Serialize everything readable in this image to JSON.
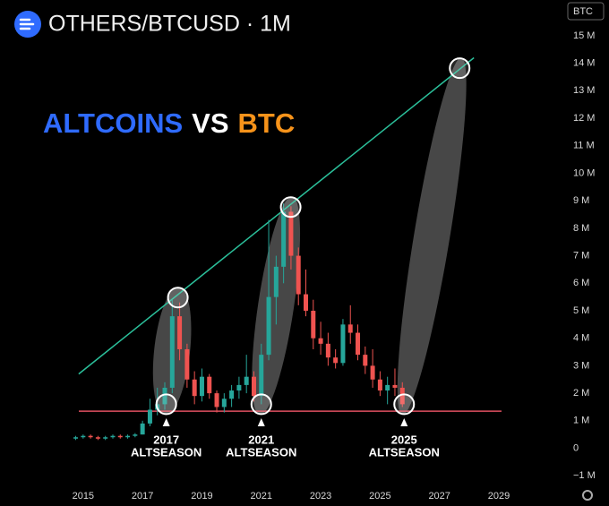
{
  "chart_data": {
    "type": "candlestick",
    "title": "OTHERS/BTCUSD · 1M",
    "headline": [
      "ALTCOINS",
      "VS",
      "BTC"
    ],
    "headline_colors": [
      "#2f6bff",
      "#ffffff",
      "#f7931a"
    ],
    "currency": "BTC",
    "up_color": "#26a69a",
    "down_color": "#ef5350",
    "x": [
      2014.75,
      2015.0,
      2015.25,
      2015.5,
      2015.75,
      2016.0,
      2016.25,
      2016.5,
      2016.75,
      2017.0,
      2017.25,
      2017.5,
      2017.75,
      2018.0,
      2018.25,
      2018.5,
      2018.75,
      2019.0,
      2019.25,
      2019.5,
      2019.75,
      2020.0,
      2020.25,
      2020.5,
      2020.75,
      2021.0,
      2021.25,
      2021.5,
      2021.75,
      2022.0,
      2022.25,
      2022.5,
      2022.75,
      2023.0,
      2023.25,
      2023.5,
      2023.75,
      2024.0,
      2024.25,
      2024.5,
      2024.75,
      2025.0,
      2025.25,
      2025.5,
      2025.75
    ],
    "open": [
      0.35,
      0.4,
      0.45,
      0.4,
      0.35,
      0.4,
      0.45,
      0.4,
      0.45,
      0.5,
      0.9,
      1.4,
      1.6,
      2.2,
      4.8,
      3.6,
      2.5,
      1.9,
      2.6,
      2.0,
      1.5,
      1.8,
      2.1,
      2.3,
      2.6,
      1.9,
      3.4,
      5.5,
      6.6,
      8.6,
      7.0,
      5.6,
      5.0,
      4.0,
      3.8,
      3.3,
      3.1,
      4.5,
      4.2,
      3.4,
      3.0,
      2.5,
      2.1,
      2.3,
      2.2
    ],
    "high": [
      0.45,
      0.5,
      0.5,
      0.45,
      0.45,
      0.5,
      0.5,
      0.5,
      0.55,
      1.0,
      1.8,
      2.2,
      2.4,
      5.4,
      5.3,
      3.8,
      2.8,
      2.9,
      2.7,
      2.1,
      2.0,
      2.3,
      2.6,
      3.4,
      2.8,
      3.8,
      8.3,
      7.0,
      8.9,
      8.8,
      7.3,
      6.5,
      5.4,
      4.6,
      4.2,
      3.6,
      4.7,
      5.2,
      4.5,
      3.7,
      3.6,
      2.8,
      2.6,
      2.9,
      2.4
    ],
    "low": [
      0.3,
      0.35,
      0.35,
      0.3,
      0.3,
      0.35,
      0.35,
      0.35,
      0.4,
      0.5,
      0.8,
      1.2,
      1.4,
      2.0,
      3.2,
      2.2,
      1.6,
      1.7,
      1.8,
      1.3,
      1.3,
      1.5,
      1.8,
      2.0,
      1.7,
      1.6,
      3.2,
      4.5,
      6.0,
      6.5,
      5.2,
      4.8,
      3.6,
      3.4,
      3.0,
      2.9,
      3.0,
      3.8,
      3.2,
      2.7,
      2.2,
      1.9,
      1.6,
      1.9,
      1.5
    ],
    "close": [
      0.4,
      0.45,
      0.4,
      0.35,
      0.4,
      0.45,
      0.4,
      0.45,
      0.5,
      0.9,
      1.4,
      1.6,
      2.2,
      4.8,
      3.6,
      2.5,
      1.9,
      2.6,
      2.0,
      1.5,
      1.8,
      2.1,
      2.3,
      2.6,
      1.9,
      3.4,
      5.5,
      6.6,
      8.6,
      7.0,
      5.6,
      5.0,
      4.0,
      3.8,
      3.3,
      3.1,
      4.5,
      4.2,
      3.4,
      3.0,
      2.5,
      2.1,
      2.3,
      2.2,
      1.6
    ],
    "xlim": [
      2012.2,
      2030.9
    ],
    "ylim": [
      -2.1,
      16.3
    ],
    "xticks": [
      2015,
      2017,
      2019,
      2021,
      2023,
      2025,
      2027,
      2029
    ],
    "yticks": [
      {
        "value": -1,
        "label": "−1 M"
      },
      0,
      {
        "value": 1,
        "label": "1 M"
      },
      {
        "value": 2,
        "label": "2 M"
      },
      {
        "value": 3,
        "label": "3 M"
      },
      {
        "value": 4,
        "label": "4 M"
      },
      {
        "value": 5,
        "label": "5 M"
      },
      {
        "value": 6,
        "label": "6 M"
      },
      {
        "value": 7,
        "label": "7 M"
      },
      {
        "value": 8,
        "label": "8 M"
      },
      {
        "value": 9,
        "label": "9 M"
      },
      {
        "value": 10,
        "label": "10 M"
      },
      {
        "value": 11,
        "label": "11 M"
      },
      {
        "value": 12,
        "label": "12 M"
      },
      {
        "value": 13,
        "label": "13 M"
      },
      {
        "value": 14,
        "label": "14 M"
      },
      {
        "value": 15,
        "label": "15 M"
      }
    ],
    "support": 1.35,
    "trendline": {
      "x": [
        2014.85,
        2028.16
      ],
      "values": [
        2.7,
        14.2
      ]
    },
    "highlights": {
      "x": [
        2017.8,
        2018.19,
        2021.0,
        2021.99,
        2025.81,
        2027.68
      ],
      "values": [
        1.6,
        5.48,
        1.6,
        8.77,
        1.6,
        13.82
      ]
    },
    "annotations": [
      {
        "x": 2017.8,
        "year": "2017",
        "label": "ALTSEASON"
      },
      {
        "x": 2021.0,
        "year": "2021",
        "label": "ALTSEASON"
      },
      {
        "x": 2025.81,
        "year": "2025",
        "label": "ALTSEASON"
      }
    ]
  }
}
